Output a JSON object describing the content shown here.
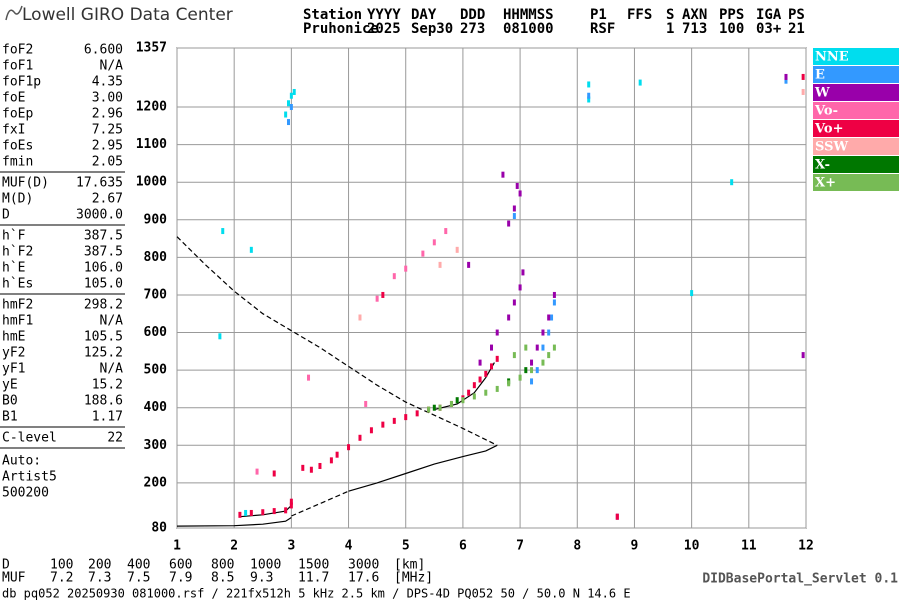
{
  "logo": "Lowell GIRO Data Center",
  "header": {
    "row1": [
      "Station",
      "YYYY",
      "DAY",
      "DDD",
      "HHMMSS",
      "P1",
      "FFS",
      "S",
      "AXN",
      "PPS",
      "IGA",
      "PS"
    ],
    "row2": [
      "Pruhonice",
      "2025",
      "Sep30",
      "273",
      "081000",
      "RSF",
      "1",
      "713",
      "100",
      "03+",
      "21"
    ]
  },
  "parameters": [
    [
      {
        "label": "foF2",
        "value": "6.600"
      },
      {
        "label": "foF1",
        "value": "N/A"
      },
      {
        "label": "foF1p",
        "value": "4.35"
      },
      {
        "label": "foE",
        "value": "3.00"
      },
      {
        "label": "foEp",
        "value": "2.96"
      },
      {
        "label": "fxI",
        "value": "7.25"
      },
      {
        "label": "foEs",
        "value": "2.95"
      },
      {
        "label": "fmin",
        "value": "2.05"
      }
    ],
    [
      {
        "label": "MUF(D)",
        "value": "17.635"
      },
      {
        "label": "M(D)",
        "value": "2.67"
      },
      {
        "label": "D",
        "value": "3000.0"
      }
    ],
    [
      {
        "label": "h`F",
        "value": "387.5"
      },
      {
        "label": "h`F2",
        "value": "387.5"
      },
      {
        "label": "h`E",
        "value": "106.0"
      },
      {
        "label": "h`Es",
        "value": "105.0"
      }
    ],
    [
      {
        "label": "hmF2",
        "value": "298.2"
      },
      {
        "label": "hmF1",
        "value": "N/A"
      },
      {
        "label": "hmE",
        "value": "105.5"
      },
      {
        "label": "yF2",
        "value": "125.2"
      },
      {
        "label": "yF1",
        "value": "N/A"
      },
      {
        "label": "yE",
        "value": "15.2"
      },
      {
        "label": "B0",
        "value": "188.6"
      },
      {
        "label": "B1",
        "value": "1.17"
      }
    ],
    [
      {
        "label": "C-level",
        "value": "22"
      }
    ]
  ],
  "autoscaling": [
    "Auto:",
    "Artist5",
    "500200"
  ],
  "chart_data": {
    "type": "scatter",
    "xlim": [
      1,
      12
    ],
    "xticks": [
      1,
      2,
      3,
      4,
      5,
      6,
      7,
      8,
      9,
      10,
      11,
      12
    ],
    "ylim": [
      80,
      1357
    ],
    "yticks": [
      80,
      200,
      300,
      400,
      500,
      600,
      700,
      800,
      900,
      1000,
      1100,
      1200,
      1357
    ],
    "grid": true,
    "series": [
      {
        "name": "NNE",
        "color": "#00ddee",
        "x": [
          2.9,
          2.95,
          3.0,
          3.05,
          8.2,
          8.2,
          9.1,
          1.8,
          1.75,
          2.3,
          10.7,
          10.0,
          2.2
        ],
        "y": [
          1180,
          1210,
          1230,
          1240,
          1260,
          1220,
          1265,
          870,
          590,
          820,
          1000,
          705,
          120
        ]
      },
      {
        "name": "E",
        "color": "#3399ff",
        "x": [
          3.0,
          2.95,
          8.2,
          7.3,
          7.4,
          7.5,
          7.55,
          7.6,
          7.2,
          11.65,
          6.9
        ],
        "y": [
          1200,
          1160,
          1230,
          500,
          560,
          600,
          640,
          680,
          470,
          1270,
          910
        ]
      },
      {
        "name": "W",
        "color": "#9900aa",
        "x": [
          6.3,
          6.5,
          6.6,
          6.8,
          6.9,
          7.0,
          7.05,
          6.8,
          6.9,
          7.0,
          6.7,
          6.1,
          7.3,
          7.4,
          7.5,
          7.6,
          7.2,
          8.7,
          11.95,
          11.65,
          6.95
        ],
        "y": [
          520,
          560,
          600,
          640,
          680,
          720,
          760,
          890,
          930,
          970,
          1020,
          780,
          560,
          600,
          640,
          700,
          520,
          110,
          540,
          1280,
          990
        ]
      },
      {
        "name": "Vo-",
        "color": "#ff66aa",
        "x": [
          4.5,
          4.8,
          5.0,
          5.3,
          5.5,
          5.7,
          2.4,
          3.3,
          4.3
        ],
        "y": [
          690,
          750,
          770,
          810,
          840,
          870,
          230,
          480,
          410
        ]
      },
      {
        "name": "Vo+",
        "color": "#ee0044",
        "x": [
          2.1,
          2.3,
          2.5,
          2.7,
          2.9,
          3.0,
          3.0,
          3.2,
          3.35,
          3.5,
          3.7,
          3.8,
          4.0,
          4.2,
          4.4,
          4.6,
          4.8,
          5.0,
          5.2,
          5.4,
          5.6,
          5.8,
          6.0,
          6.1,
          6.2,
          6.3,
          6.4,
          6.5,
          6.6,
          2.7,
          4.6,
          11.95,
          8.7
        ],
        "y": [
          115,
          120,
          122,
          125,
          127,
          140,
          150,
          240,
          235,
          245,
          260,
          275,
          295,
          320,
          340,
          355,
          365,
          375,
          385,
          395,
          400,
          410,
          425,
          440,
          460,
          475,
          490,
          510,
          530,
          225,
          700,
          1280,
          110
        ]
      },
      {
        "name": "SSW",
        "color": "#ffaaaa",
        "x": [
          5.6,
          5.9,
          4.2,
          11.95
        ],
        "y": [
          780,
          820,
          640,
          1240
        ]
      },
      {
        "name": "X-",
        "color": "#007700",
        "x": [
          6.8,
          7.1,
          5.5,
          5.9
        ],
        "y": [
          470,
          500,
          400,
          420
        ]
      },
      {
        "name": "X+",
        "color": "#77bb55",
        "x": [
          5.4,
          5.6,
          5.8,
          6.0,
          6.2,
          6.4,
          6.6,
          6.8,
          7.0,
          7.2,
          7.4,
          7.5,
          7.6,
          6.9,
          7.1
        ],
        "y": [
          395,
          400,
          410,
          420,
          430,
          440,
          450,
          465,
          480,
          500,
          520,
          540,
          560,
          540,
          560
        ]
      }
    ],
    "curves": [
      {
        "style": "dashed",
        "x": [
          1.0,
          1.5,
          2.0,
          2.5,
          3.0,
          3.5,
          4.0,
          4.5,
          5.0,
          5.5,
          6.0,
          6.4,
          6.6
        ],
        "y": [
          855,
          780,
          710,
          650,
          605,
          560,
          510,
          460,
          415,
          380,
          345,
          315,
          300
        ]
      },
      {
        "style": "dashed",
        "x": [
          3.0,
          3.5,
          4.0
        ],
        "y": [
          112,
          145,
          178
        ]
      },
      {
        "style": "solid",
        "x": [
          4.0,
          4.5,
          5.0,
          5.5,
          6.0,
          6.4,
          6.6
        ],
        "y": [
          178,
          200,
          225,
          250,
          270,
          285,
          300
        ]
      },
      {
        "style": "solid",
        "x": [
          1.0,
          2.0,
          2.5,
          2.9,
          3.0
        ],
        "y": [
          85,
          86,
          90,
          98,
          108
        ]
      },
      {
        "style": "solid",
        "x": [
          2.1,
          2.5,
          2.9,
          3.0
        ],
        "y": [
          110,
          115,
          125,
          140
        ]
      },
      {
        "style": "solid",
        "x": [
          5.5,
          5.9,
          6.2,
          6.4,
          6.55
        ],
        "y": [
          395,
          410,
          440,
          480,
          520
        ]
      }
    ]
  },
  "distance_table": {
    "D": [
      "D",
      "100",
      "200",
      "400",
      "600",
      "800",
      "1000",
      "1500",
      "3000",
      "[km]"
    ],
    "MUF": [
      "MUF",
      "7.2",
      "7.3",
      "7.5",
      "7.9",
      "8.5",
      "9.3",
      "11.7",
      "17.6",
      "[MHz]"
    ]
  },
  "footer": "db pq052 20250930 081000.rsf / 221fx512h 5 kHz 2.5 km / DPS-4D PQ052 50 / 50.0 N 14.6 E",
  "server": "DIDBasePortal_Servlet 0.1"
}
